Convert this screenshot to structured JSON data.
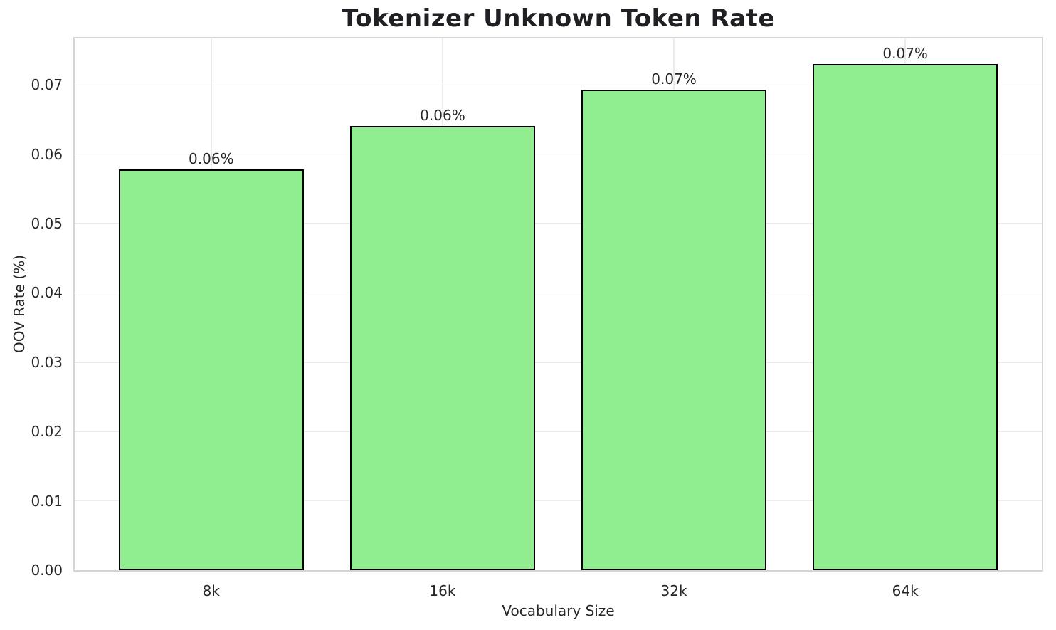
{
  "chart_data": {
    "type": "bar",
    "title": "Tokenizer Unknown Token Rate",
    "xlabel": "Vocabulary Size",
    "ylabel": "OOV Rate (%)",
    "categories": [
      "8k",
      "16k",
      "32k",
      "64k"
    ],
    "values": [
      0.0578,
      0.0641,
      0.0693,
      0.073
    ],
    "bar_labels": [
      "0.06%",
      "0.06%",
      "0.07%",
      "0.07%"
    ],
    "ylim": [
      0,
      0.0767
    ],
    "yticks": [
      0.0,
      0.01,
      0.02,
      0.03,
      0.04,
      0.05,
      0.06,
      0.07
    ],
    "ytick_labels": [
      "0.00",
      "0.01",
      "0.02",
      "0.03",
      "0.04",
      "0.05",
      "0.06",
      "0.07"
    ],
    "grid": true,
    "legend": null,
    "bar_color": "#90EE90",
    "bar_edge_color": "#000000",
    "grid_color": "#ebebeb",
    "spine_color": "#d4d4d4",
    "text_color": "#262626"
  }
}
